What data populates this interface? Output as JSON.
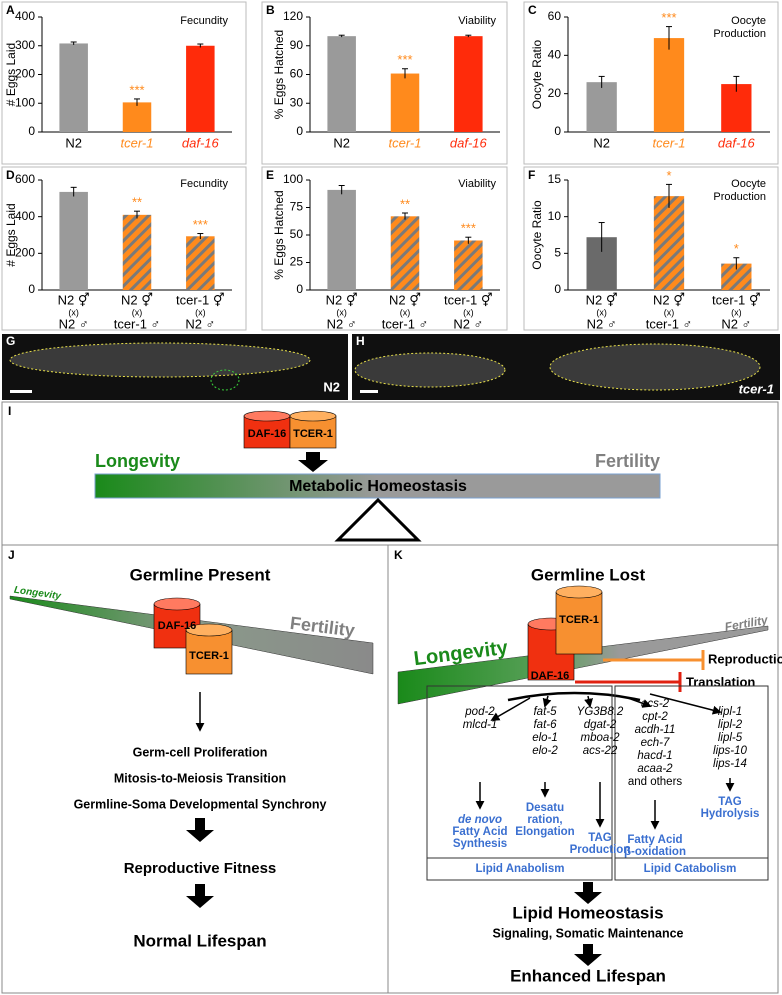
{
  "chart_data": [
    {
      "type": "bar",
      "panel": "A",
      "title": [
        "Fecundity"
      ],
      "ylabel": "# Eggs Laid",
      "categories": [
        [
          "N2"
        ],
        [
          "tcer-1"
        ],
        [
          "daf-16"
        ]
      ],
      "category_colors": [
        "#000000",
        "#ff8a1c",
        "#ff2b0a"
      ],
      "category_italic": [
        false,
        true,
        true
      ],
      "values": [
        308,
        103,
        300
      ],
      "errors": [
        5,
        12,
        6
      ],
      "colors": [
        "#9a9a9a",
        "#ff8a1c",
        "#ff2b0a"
      ],
      "hatch": [
        false,
        false,
        false
      ],
      "annotations": [
        null,
        "***",
        null
      ],
      "ylim": [
        0,
        400
      ],
      "yticks": [
        0,
        100,
        200,
        300,
        400
      ]
    },
    {
      "type": "bar",
      "panel": "B",
      "title": [
        "Viability"
      ],
      "ylabel": "% Eggs Hatched",
      "categories": [
        [
          "N2"
        ],
        [
          "tcer-1"
        ],
        [
          "daf-16"
        ]
      ],
      "category_colors": [
        "#000000",
        "#ff8a1c",
        "#ff2b0a"
      ],
      "category_italic": [
        false,
        true,
        true
      ],
      "values": [
        100,
        61,
        100
      ],
      "errors": [
        1,
        5,
        1
      ],
      "colors": [
        "#9a9a9a",
        "#ff8a1c",
        "#ff2b0a"
      ],
      "hatch": [
        false,
        false,
        false
      ],
      "annotations": [
        null,
        "***",
        null
      ],
      "ylim": [
        0,
        120
      ],
      "yticks": [
        0,
        30,
        60,
        90,
        120
      ]
    },
    {
      "type": "bar",
      "panel": "C",
      "title": [
        "Oocyte",
        "Production"
      ],
      "ylabel": "Oocyte Ratio",
      "categories": [
        [
          "N2"
        ],
        [
          "tcer-1"
        ],
        [
          "daf-16"
        ]
      ],
      "category_colors": [
        "#000000",
        "#ff8a1c",
        "#ff2b0a"
      ],
      "category_italic": [
        false,
        true,
        true
      ],
      "values": [
        26,
        49,
        25
      ],
      "errors": [
        3,
        6,
        4
      ],
      "colors": [
        "#9a9a9a",
        "#ff8a1c",
        "#ff2b0a"
      ],
      "hatch": [
        false,
        false,
        false
      ],
      "annotations": [
        null,
        "***",
        null
      ],
      "ylim": [
        0,
        60
      ],
      "yticks": [
        0,
        20,
        40,
        60
      ]
    },
    {
      "type": "bar",
      "panel": "D",
      "title": [
        "Fecundity"
      ],
      "ylabel": "# Eggs Laid",
      "categories": [
        [
          "N2 ⚥",
          "(x)",
          "N2 ♂"
        ],
        [
          "N2 ⚥",
          "(x)",
          "tcer-1 ♂"
        ],
        [
          "tcer-1 ⚥",
          "(x)",
          "N2 ♂"
        ]
      ],
      "category_colors": [
        "#000000",
        "#000000",
        "#000000"
      ],
      "category_italic": [
        false,
        false,
        false
      ],
      "values": [
        535,
        410,
        293
      ],
      "errors": [
        25,
        20,
        15
      ],
      "colors": [
        "#9a9a9a",
        "#ff8a1c",
        "#ff8a1c"
      ],
      "hatch": [
        false,
        true,
        true
      ],
      "annotations": [
        null,
        "**",
        "***"
      ],
      "ylim": [
        0,
        600
      ],
      "yticks": [
        0,
        200,
        400,
        600
      ]
    },
    {
      "type": "bar",
      "panel": "E",
      "title": [
        "Viability"
      ],
      "ylabel": "% Eggs Hatched",
      "categories": [
        [
          "N2 ⚥",
          "(x)",
          "N2 ♂"
        ],
        [
          "N2 ⚥",
          "(x)",
          "tcer-1 ♂"
        ],
        [
          "tcer-1 ⚥",
          "(x)",
          "N2 ♂"
        ]
      ],
      "category_colors": [
        "#000000",
        "#000000",
        "#000000"
      ],
      "category_italic": [
        false,
        false,
        false
      ],
      "values": [
        91,
        67,
        45
      ],
      "errors": [
        4,
        3,
        3
      ],
      "colors": [
        "#9a9a9a",
        "#ff8a1c",
        "#ff8a1c"
      ],
      "hatch": [
        false,
        true,
        true
      ],
      "annotations": [
        null,
        "**",
        "***"
      ],
      "ylim": [
        0,
        100
      ],
      "yticks": [
        0,
        25,
        50,
        75,
        100
      ]
    },
    {
      "type": "bar",
      "panel": "F",
      "title": [
        "Oocyte",
        "Production"
      ],
      "ylabel": "Oocyte Ratio",
      "categories": [
        [
          "N2 ⚥",
          "(x)",
          "N2 ♂"
        ],
        [
          "N2 ⚥",
          "(x)",
          "tcer-1 ♂"
        ],
        [
          "tcer-1 ⚥",
          "(x)",
          "N2 ♂"
        ]
      ],
      "category_colors": [
        "#000000",
        "#000000",
        "#000000"
      ],
      "category_italic": [
        false,
        false,
        false
      ],
      "values": [
        7.2,
        12.8,
        3.6
      ],
      "errors": [
        2,
        1.6,
        0.8
      ],
      "colors": [
        "#6a6a6a",
        "#ff8a1c",
        "#ff8a1c"
      ],
      "hatch": [
        false,
        true,
        true
      ],
      "annotations": [
        null,
        "*",
        "*"
      ],
      "ylim": [
        0,
        15
      ],
      "yticks": [
        0,
        5,
        10,
        15
      ]
    }
  ],
  "images": {
    "G": {
      "panel": "G",
      "label": "N2"
    },
    "H": {
      "panel": "H",
      "label": "tcer-1"
    }
  },
  "diagram": {
    "I": {
      "panel": "I",
      "daf": "DAF-16",
      "tcer": "TCER-1",
      "left": "Longevity",
      "right": "Fertility",
      "bar": "Metabolic Homeostasis"
    },
    "J": {
      "panel": "J",
      "title": "Germline Present",
      "left": "Longevity",
      "right": "Fertility",
      "daf": "DAF-16",
      "tcer": "TCER-1",
      "steps": [
        "Germ-cell Proliferation",
        "Mitosis-to-Meiosis Transition",
        "Germline-Soma Developmental Synchrony"
      ],
      "fitness": "Reproductive Fitness",
      "lifespan": "Normal Lifespan"
    },
    "K": {
      "panel": "K",
      "title": "Germline Lost",
      "left": "Longevity",
      "right": "Fertility",
      "daf": "DAF-16",
      "tcer": "TCER-1",
      "inhibits": [
        "Reproduction",
        "Translation"
      ],
      "groups": [
        {
          "genes": [
            "pod-2",
            "mlcd-1"
          ],
          "outcome": [
            "de novo",
            "Fatty Acid",
            "Synthesis"
          ]
        },
        {
          "genes": [
            "fat-5",
            "fat-6",
            "elo-1",
            "elo-2"
          ],
          "outcome": [
            "Desatu",
            "ration,",
            "Elongation"
          ]
        },
        {
          "genes": [
            "YG3B8.2",
            "dgat-2",
            "mboa-2",
            "acs-22"
          ],
          "outcome": [
            "TAG",
            "Production"
          ]
        },
        {
          "genes": [
            "acs-2",
            "cpt-2",
            "acdh-11",
            "ech-7",
            "hacd-1",
            "acaa-2",
            "and others"
          ],
          "outcome": [
            "Fatty Acid",
            "β-oxidation"
          ]
        },
        {
          "genes": [
            "lipl-1",
            "lipl-2",
            "lipl-5",
            "lips-10",
            "lips-14"
          ],
          "outcome": [
            "TAG",
            "Hydrolysis"
          ]
        }
      ],
      "anabolism": "Lipid Anabolism",
      "catabolism": "Lipid Catabolism",
      "homeostasis": "Lipid Homeostasis",
      "signaling": "Signaling, Somatic Maintenance",
      "lifespan": "Enhanced Lifespan"
    }
  }
}
